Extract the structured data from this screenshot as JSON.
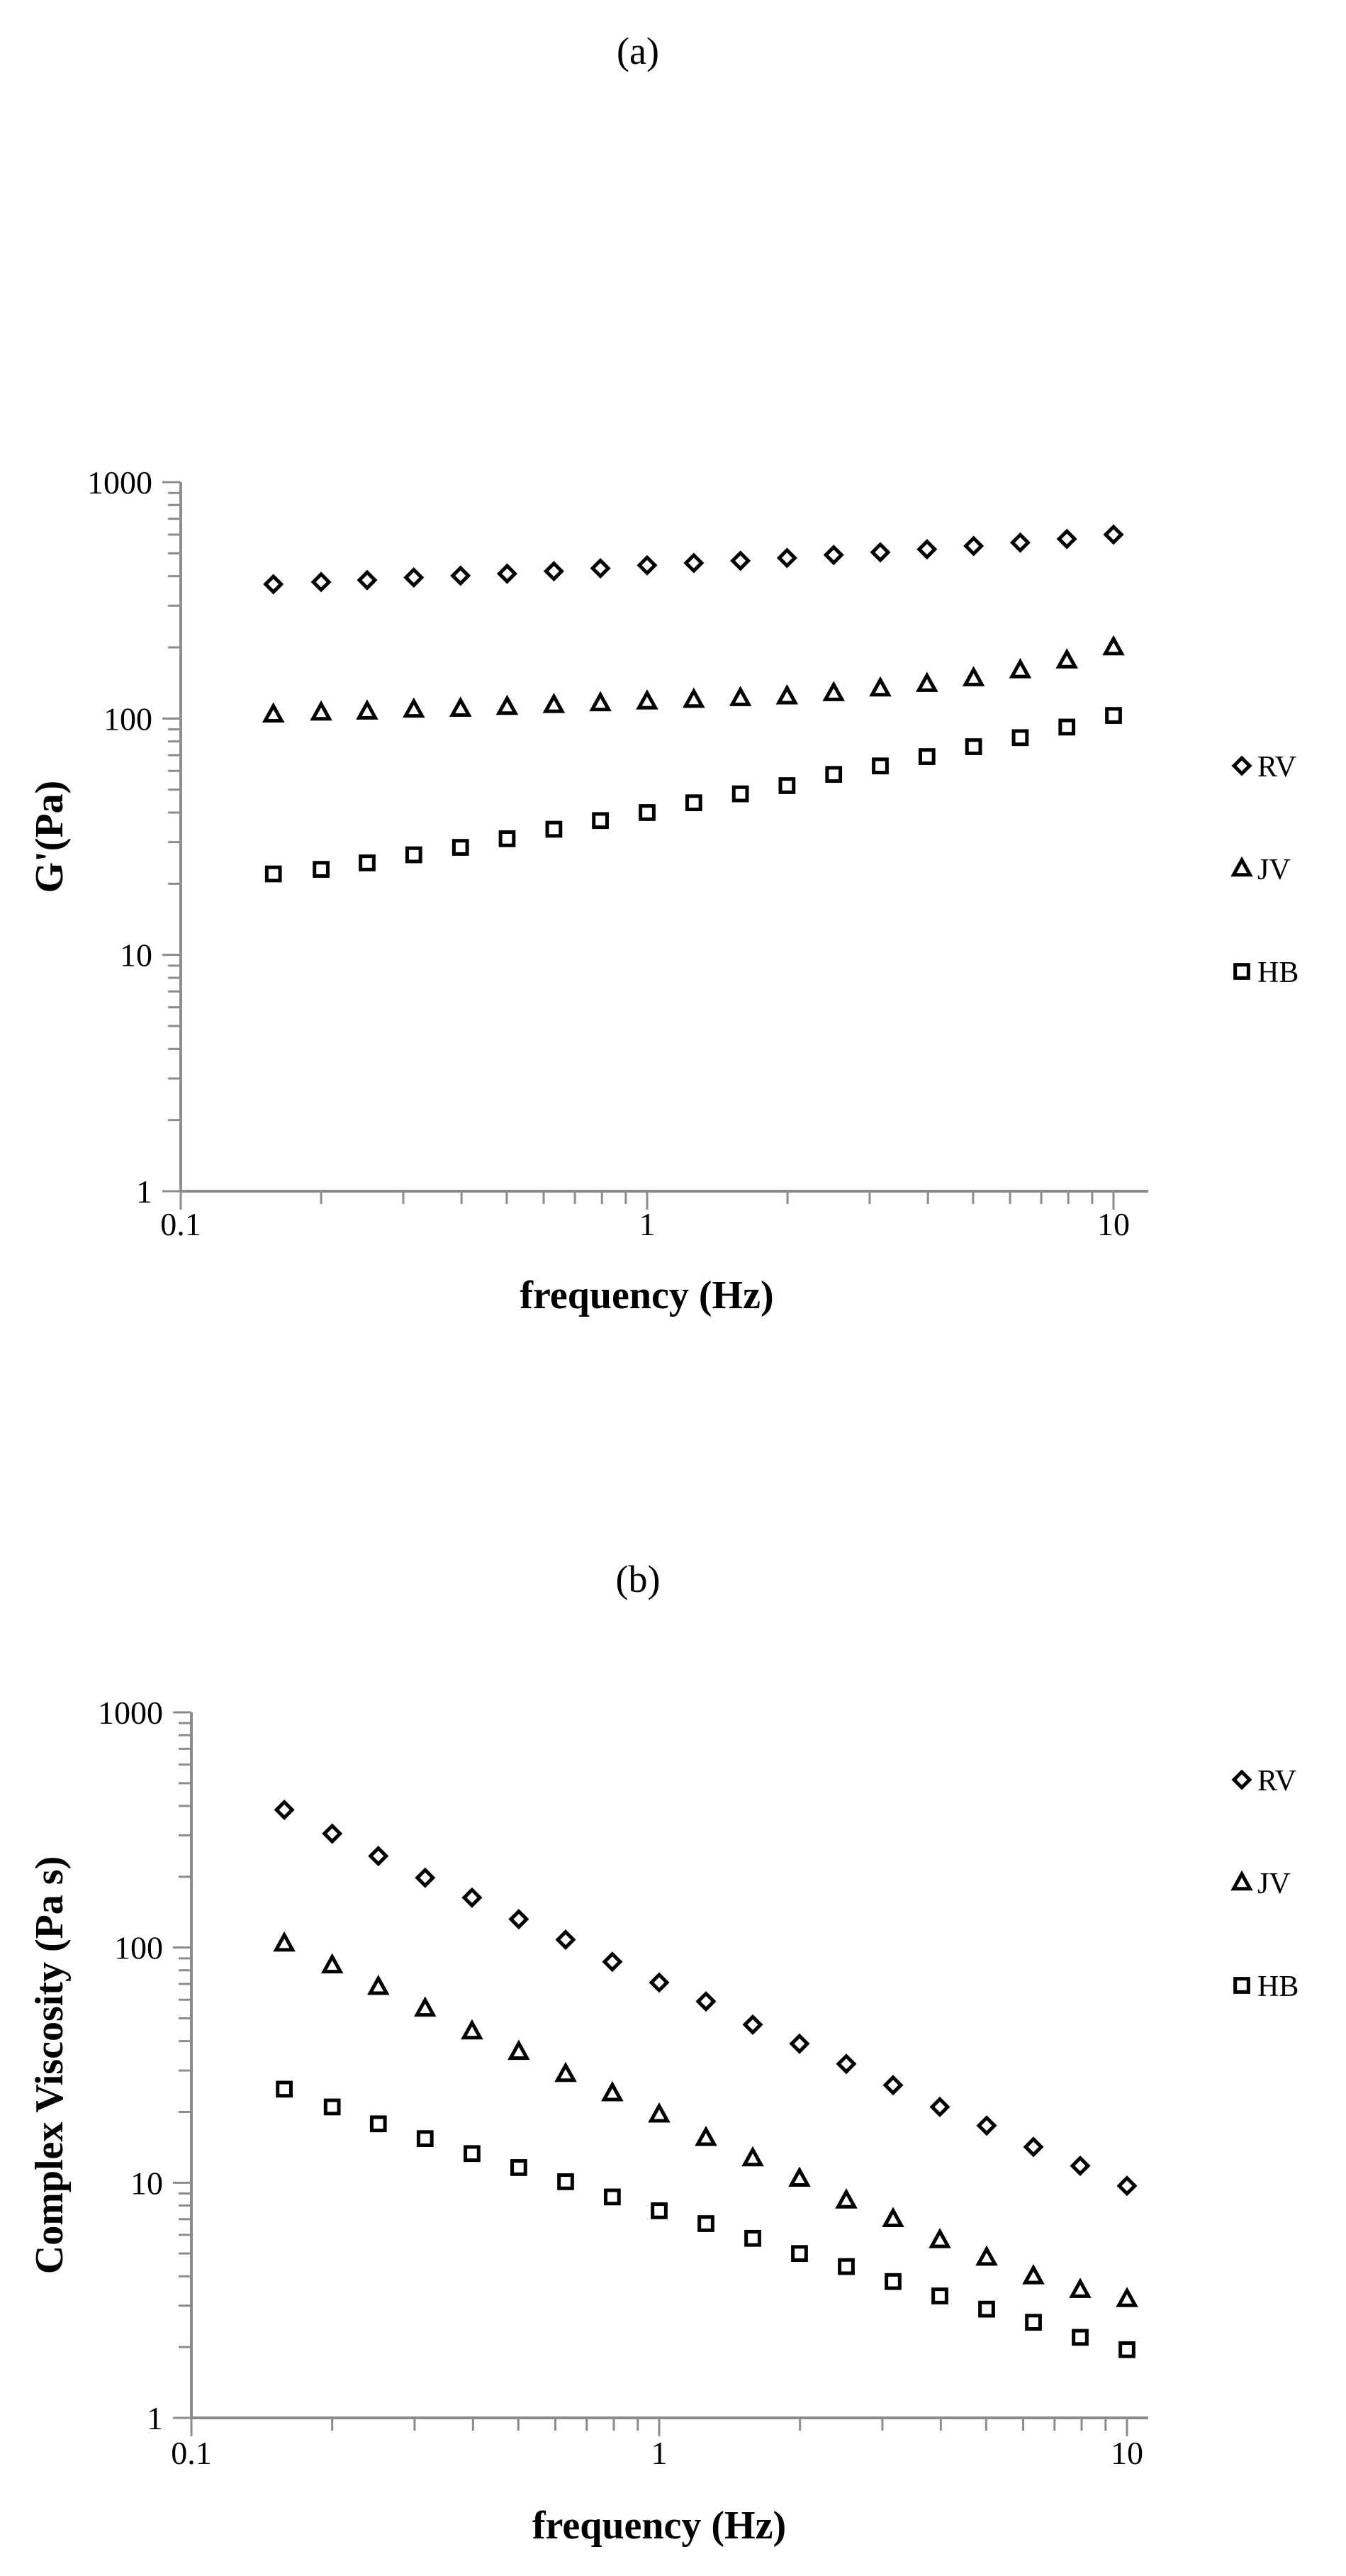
{
  "chart_data": [
    {
      "type": "scatter",
      "panel_label": "(a)",
      "xscale": "log",
      "yscale": "log",
      "xlim": [
        0.1,
        10
      ],
      "ylim": [
        1,
        1000
      ],
      "xlabel": "frequency (Hz)",
      "ylabel": "G'(Pa)",
      "x_ticks": [
        "0.1",
        "1",
        "10"
      ],
      "y_ticks": [
        "1",
        "10",
        "100",
        "1000"
      ],
      "legend_position": "right",
      "x": [
        0.158,
        0.2,
        0.251,
        0.316,
        0.398,
        0.501,
        0.631,
        0.794,
        1.0,
        1.259,
        1.585,
        1.995,
        2.512,
        3.162,
        3.981,
        5.012,
        6.31,
        7.943,
        10.0
      ],
      "series": [
        {
          "name": "RV",
          "marker": "diamond",
          "values": [
            370,
            378,
            385,
            395,
            402,
            410,
            420,
            432,
            445,
            455,
            465,
            478,
            492,
            505,
            520,
            537,
            555,
            575,
            600
          ]
        },
        {
          "name": "JV",
          "marker": "triangle",
          "values": [
            104,
            106,
            107,
            109,
            110,
            112,
            114,
            116,
            118,
            120,
            122,
            124,
            128,
            134,
            140,
            148,
            160,
            176,
            200
          ]
        },
        {
          "name": "HB",
          "marker": "square",
          "values": [
            22,
            23,
            24.5,
            26.5,
            28.5,
            31,
            34,
            37,
            40,
            44,
            48,
            52,
            58,
            63,
            69,
            76,
            83,
            92,
            103
          ]
        }
      ]
    },
    {
      "type": "scatter",
      "panel_label": "(b)",
      "xscale": "log",
      "yscale": "log",
      "xlim": [
        0.1,
        10
      ],
      "ylim": [
        1,
        1000
      ],
      "xlabel": "frequency (Hz)",
      "ylabel": "Complex Viscosity (Pa s)",
      "x_ticks": [
        "0.1",
        "1",
        "10"
      ],
      "y_ticks": [
        "1",
        "10",
        "100",
        "1000"
      ],
      "legend_position": "right",
      "x": [
        0.158,
        0.2,
        0.251,
        0.316,
        0.398,
        0.501,
        0.631,
        0.794,
        1.0,
        1.259,
        1.585,
        1.995,
        2.512,
        3.162,
        3.981,
        5.012,
        6.31,
        7.943,
        10.0
      ],
      "series": [
        {
          "name": "RV",
          "marker": "diamond",
          "values": [
            385,
            305,
            245,
            198,
            163,
            132,
            108,
            87,
            71,
            59,
            47,
            39,
            32,
            26,
            21,
            17.5,
            14.2,
            11.8,
            9.7
          ]
        },
        {
          "name": "JV",
          "marker": "triangle",
          "values": [
            104,
            84,
            68,
            55,
            44,
            36,
            29,
            24,
            19.5,
            15.5,
            12.7,
            10.4,
            8.4,
            7.0,
            5.7,
            4.8,
            4.0,
            3.5,
            3.2
          ]
        },
        {
          "name": "HB",
          "marker": "square",
          "values": [
            25,
            21,
            17.8,
            15.4,
            13.3,
            11.6,
            10.1,
            8.7,
            7.6,
            6.7,
            5.8,
            5.0,
            4.4,
            3.8,
            3.3,
            2.9,
            2.55,
            2.2,
            1.95
          ]
        }
      ]
    }
  ]
}
